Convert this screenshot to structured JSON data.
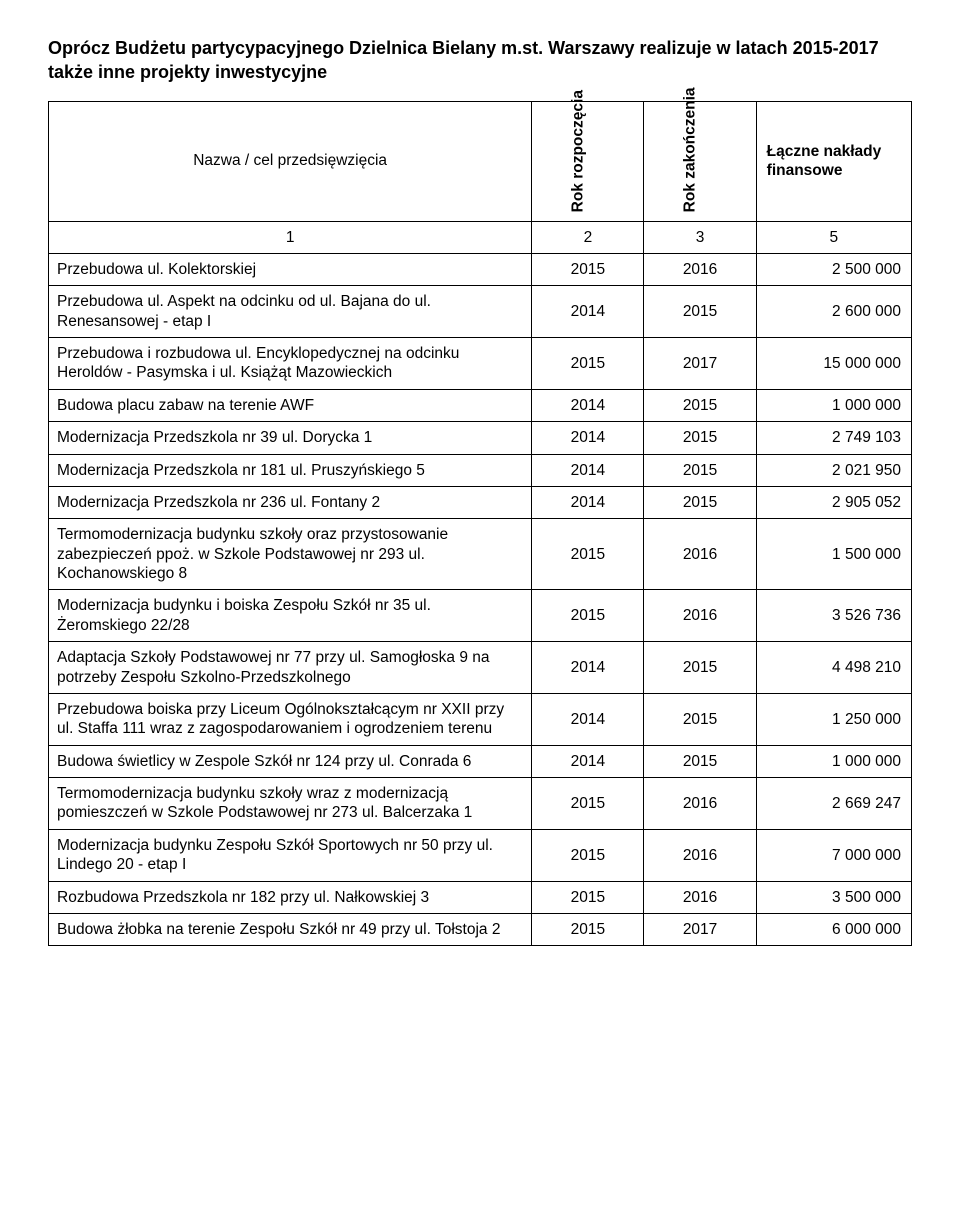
{
  "intro": "Oprócz Budżetu partycypacyjnego Dzielnica Bielany m.st. Warszawy realizuje w latach 2015-2017 także inne projekty inwestycyjne",
  "headers": {
    "name": "Nazwa / cel przedsięwzięcia",
    "start": "Rok rozpoczęcia",
    "end": "Rok zakończenia",
    "total": "Łączne nakłady finansowe",
    "num_row": [
      "1",
      "2",
      "3",
      "5"
    ]
  },
  "rows": [
    {
      "name": "Przebudowa ul. Kolektorskiej",
      "start": "2015",
      "end": "2016",
      "amount": "2 500 000"
    },
    {
      "name": "Przebudowa ul. Aspekt na odcinku od ul. Bajana do ul. Renesansowej - etap I",
      "start": "2014",
      "end": "2015",
      "amount": "2 600 000"
    },
    {
      "name": "Przebudowa i rozbudowa ul. Encyklopedycznej na odcinku Heroldów - Pasymska i ul. Książąt Mazowieckich",
      "start": "2015",
      "end": "2017",
      "amount": "15 000 000"
    },
    {
      "name": "Budowa placu zabaw na terenie AWF",
      "start": "2014",
      "end": "2015",
      "amount": "1 000 000"
    },
    {
      "name": "Modernizacja Przedszkola nr 39 ul. Dorycka 1",
      "start": "2014",
      "end": "2015",
      "amount": "2 749 103"
    },
    {
      "name": "Modernizacja Przedszkola nr 181 ul. Pruszyńskiego 5",
      "start": "2014",
      "end": "2015",
      "amount": "2 021 950"
    },
    {
      "name": "Modernizacja Przedszkola nr 236 ul. Fontany 2",
      "start": "2014",
      "end": "2015",
      "amount": "2 905 052"
    },
    {
      "name": "Termomodernizacja budynku szkoły oraz przystosowanie zabezpieczeń ppoż. w Szkole Podstawowej nr 293 ul. Kochanowskiego 8",
      "start": "2015",
      "end": "2016",
      "amount": "1 500 000"
    },
    {
      "name": "Modernizacja budynku i boiska Zespołu Szkół nr 35 ul. Żeromskiego 22/28",
      "start": "2015",
      "end": "2016",
      "amount": "3 526 736"
    },
    {
      "name": "Adaptacja Szkoły Podstawowej nr 77 przy ul. Samogłoska 9 na potrzeby Zespołu Szkolno-Przedszkolnego",
      "start": "2014",
      "end": "2015",
      "amount": "4 498 210"
    },
    {
      "name": "Przebudowa boiska przy Liceum Ogólnokształcącym nr XXII przy ul. Staffa 111 wraz z zagospodarowaniem i ogrodzeniem terenu",
      "start": "2014",
      "end": "2015",
      "amount": "1 250 000"
    },
    {
      "name": "Budowa świetlicy w Zespole Szkół nr 124 przy ul. Conrada 6",
      "start": "2014",
      "end": "2015",
      "amount": "1 000 000"
    },
    {
      "name": "Termomodernizacja budynku szkoły wraz z modernizacją pomieszczeń w Szkole Podstawowej nr 273 ul. Balcerzaka 1",
      "start": "2015",
      "end": "2016",
      "amount": "2 669 247"
    },
    {
      "name": "Modernizacja budynku Zespołu Szkół Sportowych nr 50 przy ul. Lindego 20 - etap I",
      "start": "2015",
      "end": "2016",
      "amount": "7 000 000"
    },
    {
      "name": "Rozbudowa Przedszkola nr 182 przy ul. Nałkowskiej 3",
      "start": "2015",
      "end": "2016",
      "amount": "3 500 000"
    },
    {
      "name": "Budowa żłobka na terenie Zespołu Szkół nr 49 przy ul. Tołstoja 2",
      "start": "2015",
      "end": "2017",
      "amount": "6 000 000"
    }
  ]
}
